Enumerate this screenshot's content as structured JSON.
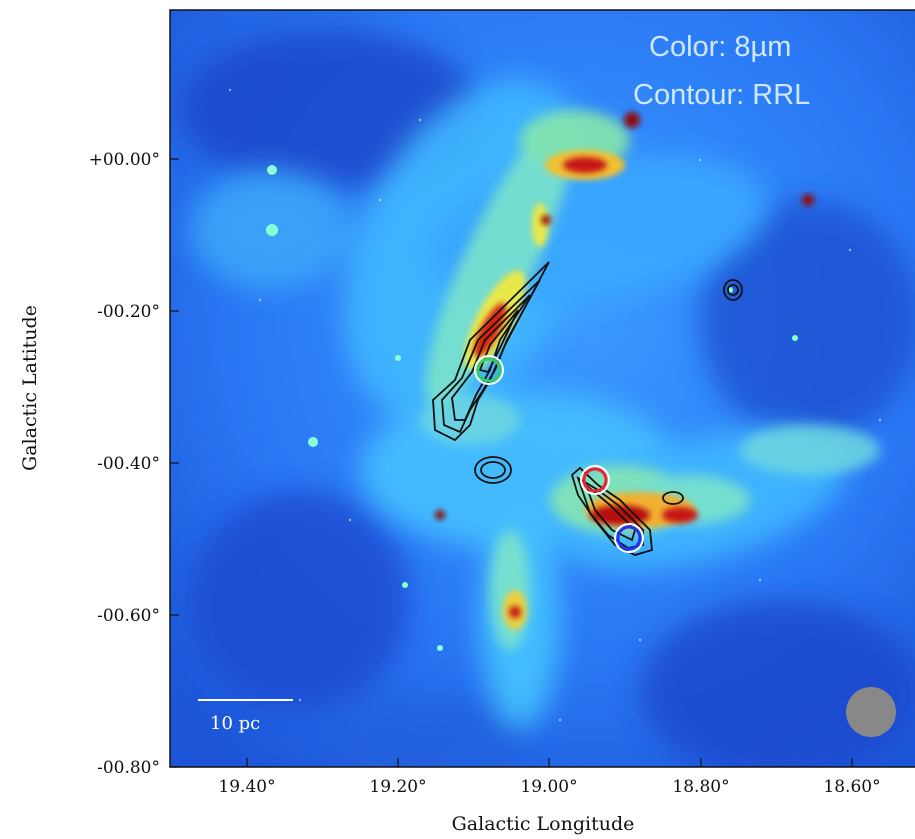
{
  "overlay": {
    "line1": "Color: 8µm",
    "line2": "Contour: RRL"
  },
  "axes": {
    "xlabel": "Galactic Longitude",
    "ylabel": "Galactic Latitude",
    "xticks": [
      "19.40°",
      "19.20°",
      "19.00°",
      "18.80°",
      "18.60°"
    ],
    "yticks": [
      "+00.00°",
      "-00.20°",
      "-00.40°",
      "-00.60°",
      "-00.80°"
    ]
  },
  "scalebar": {
    "label": "10 pc"
  },
  "markers": [
    {
      "name": "green-circle-marker",
      "color": "#33cc66"
    },
    {
      "name": "red-circle-marker",
      "color": "#ee2233"
    },
    {
      "name": "blue-circle-marker",
      "color": "#2233ee"
    }
  ],
  "beam": {
    "color": "#888888"
  },
  "colormap": [
    "#1a2ab0",
    "#1f6fff",
    "#3fb2ff",
    "#7fe6c8",
    "#e8e84a",
    "#ff8a1a",
    "#c81414",
    "#6a0606"
  ]
}
